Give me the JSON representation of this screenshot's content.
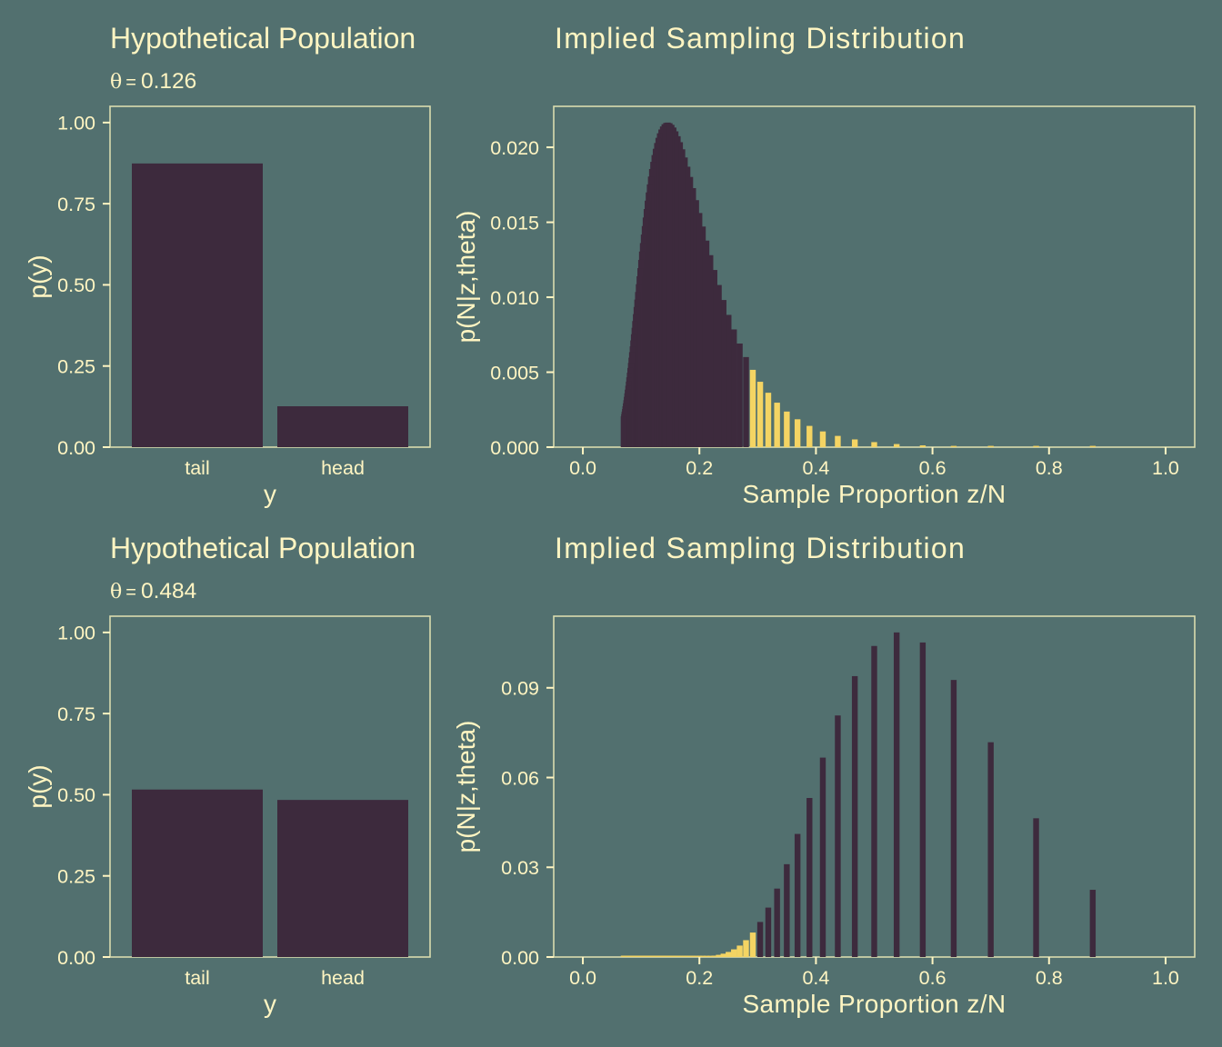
{
  "figure": {
    "background": "#52706f",
    "text_color": "#fff5c2",
    "panel_border_color": "#dadcae"
  },
  "chart_data": [
    {
      "type": "bar",
      "title": "Hypothetical Population",
      "subtitle": {
        "symbol": "θ",
        "relation": "=",
        "value": "0.126"
      },
      "xlabel": "y",
      "ylabel": "p(y)",
      "categories": [
        "tail",
        "head"
      ],
      "values": [
        0.874,
        0.126
      ],
      "ylim": [
        0,
        1
      ],
      "y_ticks": [
        {
          "value": 0,
          "label": "0.00"
        },
        {
          "value": 0.25,
          "label": "0.25"
        },
        {
          "value": 0.5,
          "label": "0.50"
        },
        {
          "value": 0.75,
          "label": "0.75"
        },
        {
          "value": 1,
          "label": "1.00"
        }
      ],
      "bar_color": "#3d2a3d",
      "grid": false,
      "legend": "none"
    },
    {
      "type": "bar",
      "title": "Implied Sampling Distribution",
      "xlabel": "Sample Proportion z/N",
      "ylabel": "p(N|z,theta)",
      "xlim": [
        0,
        1
      ],
      "x_ticks": [
        {
          "value": 0,
          "label": "0.0"
        },
        {
          "value": 0.2,
          "label": "0.2"
        },
        {
          "value": 0.4,
          "label": "0.4"
        },
        {
          "value": 0.6,
          "label": "0.6"
        },
        {
          "value": 0.8,
          "label": "0.8"
        },
        {
          "value": 1,
          "label": "1.0"
        }
      ],
      "y_ticks": [
        {
          "value": 0,
          "label": "0.000"
        },
        {
          "value": 0.005,
          "label": "0.005"
        },
        {
          "value": 0.01,
          "label": "0.010"
        },
        {
          "value": 0.015,
          "label": "0.015"
        },
        {
          "value": 0.02,
          "label": "0.020"
        }
      ],
      "x": [
        0.875,
        0.7778,
        0.7,
        0.6364,
        0.5833,
        0.5385,
        0.5,
        0.4667,
        0.4375,
        0.4118,
        0.3889,
        0.3684,
        0.35,
        0.3333,
        0.3182,
        0.3043,
        0.2917,
        0.28,
        0.2692,
        0.2593,
        0.25,
        0.2414,
        0.2333,
        0.2258,
        0.2188,
        0.2121,
        0.2059,
        0.2,
        0.1944,
        0.1892,
        0.1842,
        0.1795,
        0.175,
        0.1707,
        0.1667,
        0.1628,
        0.1591,
        0.1556,
        0.1522,
        0.1489,
        0.1458,
        0.1429,
        0.14,
        0.1373,
        0.1346,
        0.1321,
        0.1296,
        0.1273,
        0.125,
        0.1228,
        0.1207,
        0.1186,
        0.1167,
        0.1148,
        0.1129,
        0.1111,
        0.1094,
        0.1077,
        0.1061,
        0.1045,
        0.1029,
        0.1014,
        0.1,
        0.0986,
        0.0972,
        0.0959,
        0.0946,
        0.0933,
        0.0921,
        0.0909,
        0.0897,
        0.0886,
        0.0875,
        0.0864,
        0.0854,
        0.0843,
        0.0833,
        0.0824,
        0.0814,
        0.0805,
        0.0795,
        0.0787,
        0.0778,
        0.0769,
        0.0761,
        0.0753,
        0.0745,
        0.0737,
        0.0729,
        0.0722,
        0.0714,
        0.0707,
        0.07
      ],
      "y": [
        3e-06,
        1.1e-05,
        2.8e-05,
        6.2e-05,
        0.000119,
        0.000208,
        0.000337,
        0.000516,
        0.000751,
        0.00105,
        0.001418,
        0.00186,
        0.002375,
        0.002966,
        0.003629,
        0.004361,
        0.005157,
        0.006009,
        0.006911,
        0.007852,
        0.008823,
        0.009815,
        0.010816,
        0.011817,
        0.012806,
        0.013776,
        0.014715,
        0.015617,
        0.016474,
        0.017277,
        0.018023,
        0.018706,
        0.019321,
        0.019867,
        0.02034,
        0.02074,
        0.021066,
        0.021319,
        0.0215,
        0.021609,
        0.02165,
        0.021626,
        0.021538,
        0.021391,
        0.021189,
        0.020935,
        0.020633,
        0.020287,
        0.019902,
        0.019482,
        0.01903,
        0.018551,
        0.018049,
        0.017528,
        0.016991,
        0.016441,
        0.015882,
        0.015317,
        0.014748,
        0.014179,
        0.013611,
        0.013048,
        0.01249,
        0.011939,
        0.011398,
        0.010868,
        0.010349,
        0.009843,
        0.009351,
        0.008873,
        0.008411,
        0.007963,
        0.007532,
        0.007117,
        0.006718,
        0.006335,
        0.005968,
        0.005617,
        0.005282,
        0.004963,
        0.004659,
        0.00437,
        0.004095,
        0.003835,
        0.003588,
        0.003355,
        0.003135,
        0.002926,
        0.00273,
        0.002545,
        0.002371,
        0.002208,
        0.002054
      ],
      "bar_color": "#3d2a3d",
      "highlight": {
        "color": "#f4d463",
        "x_range": [
          0.2917,
          1
        ]
      },
      "grid": false,
      "legend": "none"
    },
    {
      "type": "bar",
      "title": "Hypothetical Population",
      "subtitle": {
        "symbol": "θ",
        "relation": "=",
        "value": "0.484"
      },
      "xlabel": "y",
      "ylabel": "p(y)",
      "categories": [
        "tail",
        "head"
      ],
      "values": [
        0.516,
        0.484
      ],
      "ylim": [
        0,
        1
      ],
      "y_ticks": [
        {
          "value": 0,
          "label": "0.00"
        },
        {
          "value": 0.25,
          "label": "0.25"
        },
        {
          "value": 0.5,
          "label": "0.50"
        },
        {
          "value": 0.75,
          "label": "0.75"
        },
        {
          "value": 1,
          "label": "1.00"
        }
      ],
      "bar_color": "#3d2a3d",
      "grid": false,
      "legend": "none"
    },
    {
      "type": "bar",
      "title": "Implied Sampling Distribution",
      "xlabel": "Sample Proportion z/N",
      "ylabel": "p(N|z,theta)",
      "xlim": [
        0,
        1
      ],
      "x_ticks": [
        {
          "value": 0,
          "label": "0.0"
        },
        {
          "value": 0.2,
          "label": "0.2"
        },
        {
          "value": 0.4,
          "label": "0.4"
        },
        {
          "value": 0.6,
          "label": "0.6"
        },
        {
          "value": 0.8,
          "label": "0.8"
        },
        {
          "value": 1,
          "label": "1.0"
        }
      ],
      "y_ticks": [
        {
          "value": 0,
          "label": "0.00"
        },
        {
          "value": 0.03,
          "label": "0.03"
        },
        {
          "value": 0.06,
          "label": "0.06"
        },
        {
          "value": 0.09,
          "label": "0.09"
        }
      ],
      "x": [
        0.875,
        0.7778,
        0.7,
        0.6364,
        0.5833,
        0.5385,
        0.5,
        0.4667,
        0.4375,
        0.4118,
        0.3889,
        0.3684,
        0.35,
        0.3333,
        0.3182,
        0.3043,
        0.2917,
        0.28,
        0.2692,
        0.2593,
        0.25,
        0.2414,
        0.2333,
        0.2258,
        0.2188,
        0.2121,
        0.2059,
        0.2,
        0.1944,
        0.1892,
        0.1842,
        0.1795,
        0.175,
        0.1707,
        0.1667,
        0.1628,
        0.1591,
        0.1556,
        0.1522,
        0.1489,
        0.1458,
        0.1429,
        0.14,
        0.1373,
        0.1346,
        0.1321,
        0.1296,
        0.1273,
        0.125,
        0.1228,
        0.1207,
        0.1186,
        0.1167,
        0.1148,
        0.1129,
        0.1111,
        0.1094,
        0.1077,
        0.1061,
        0.1045,
        0.1029,
        0.1014,
        0.1,
        0.0986,
        0.0972,
        0.0959,
        0.0946,
        0.0933,
        0.0921,
        0.0909,
        0.0897,
        0.0886,
        0.0875,
        0.0864,
        0.0854,
        0.0843,
        0.0833,
        0.0824,
        0.0814,
        0.0805,
        0.0795,
        0.0787,
        0.0778,
        0.0769,
        0.0761,
        0.0753,
        0.0745,
        0.0737,
        0.0729,
        0.0722,
        0.0714,
        0.0707,
        0.07
      ],
      "y": [
        0.022473,
        0.046385,
        0.071804,
        0.092627,
        0.10515,
        0.108515,
        0.103988,
        0.093901,
        0.080755,
        0.066671,
        0.053167,
        0.041152,
        0.031035,
        0.022877,
        0.016526,
        0.011725,
        0.008186,
        0.005632,
        0.003824,
        0.002565,
        0.001702,
        0.001118,
        0.000727,
        0.000469,
        0.0003,
        0.000191,
        0.00012,
        7.5e-05,
        4.7e-05,
        2.9e-05,
        1.8e-05,
        1.1e-05,
        7e-06,
        4e-06,
        2e-06,
        1e-06,
        1e-06,
        1e-06,
        0,
        0,
        0,
        0,
        0,
        0,
        0,
        0,
        0,
        0,
        0,
        0,
        0,
        0,
        0,
        0,
        0,
        0,
        0,
        0,
        0,
        0,
        0,
        0,
        0,
        0,
        0,
        0,
        0,
        0,
        0,
        0,
        0,
        0,
        0,
        0,
        0,
        0,
        0,
        0,
        0,
        0,
        0,
        0,
        0,
        0,
        0,
        0,
        0,
        0,
        0,
        0,
        0,
        0,
        0
      ],
      "bar_color": "#3d2a3d",
      "highlight": {
        "color": "#f4d463",
        "x_range": [
          0,
          0.2917
        ]
      },
      "grid": false,
      "legend": "none"
    }
  ]
}
